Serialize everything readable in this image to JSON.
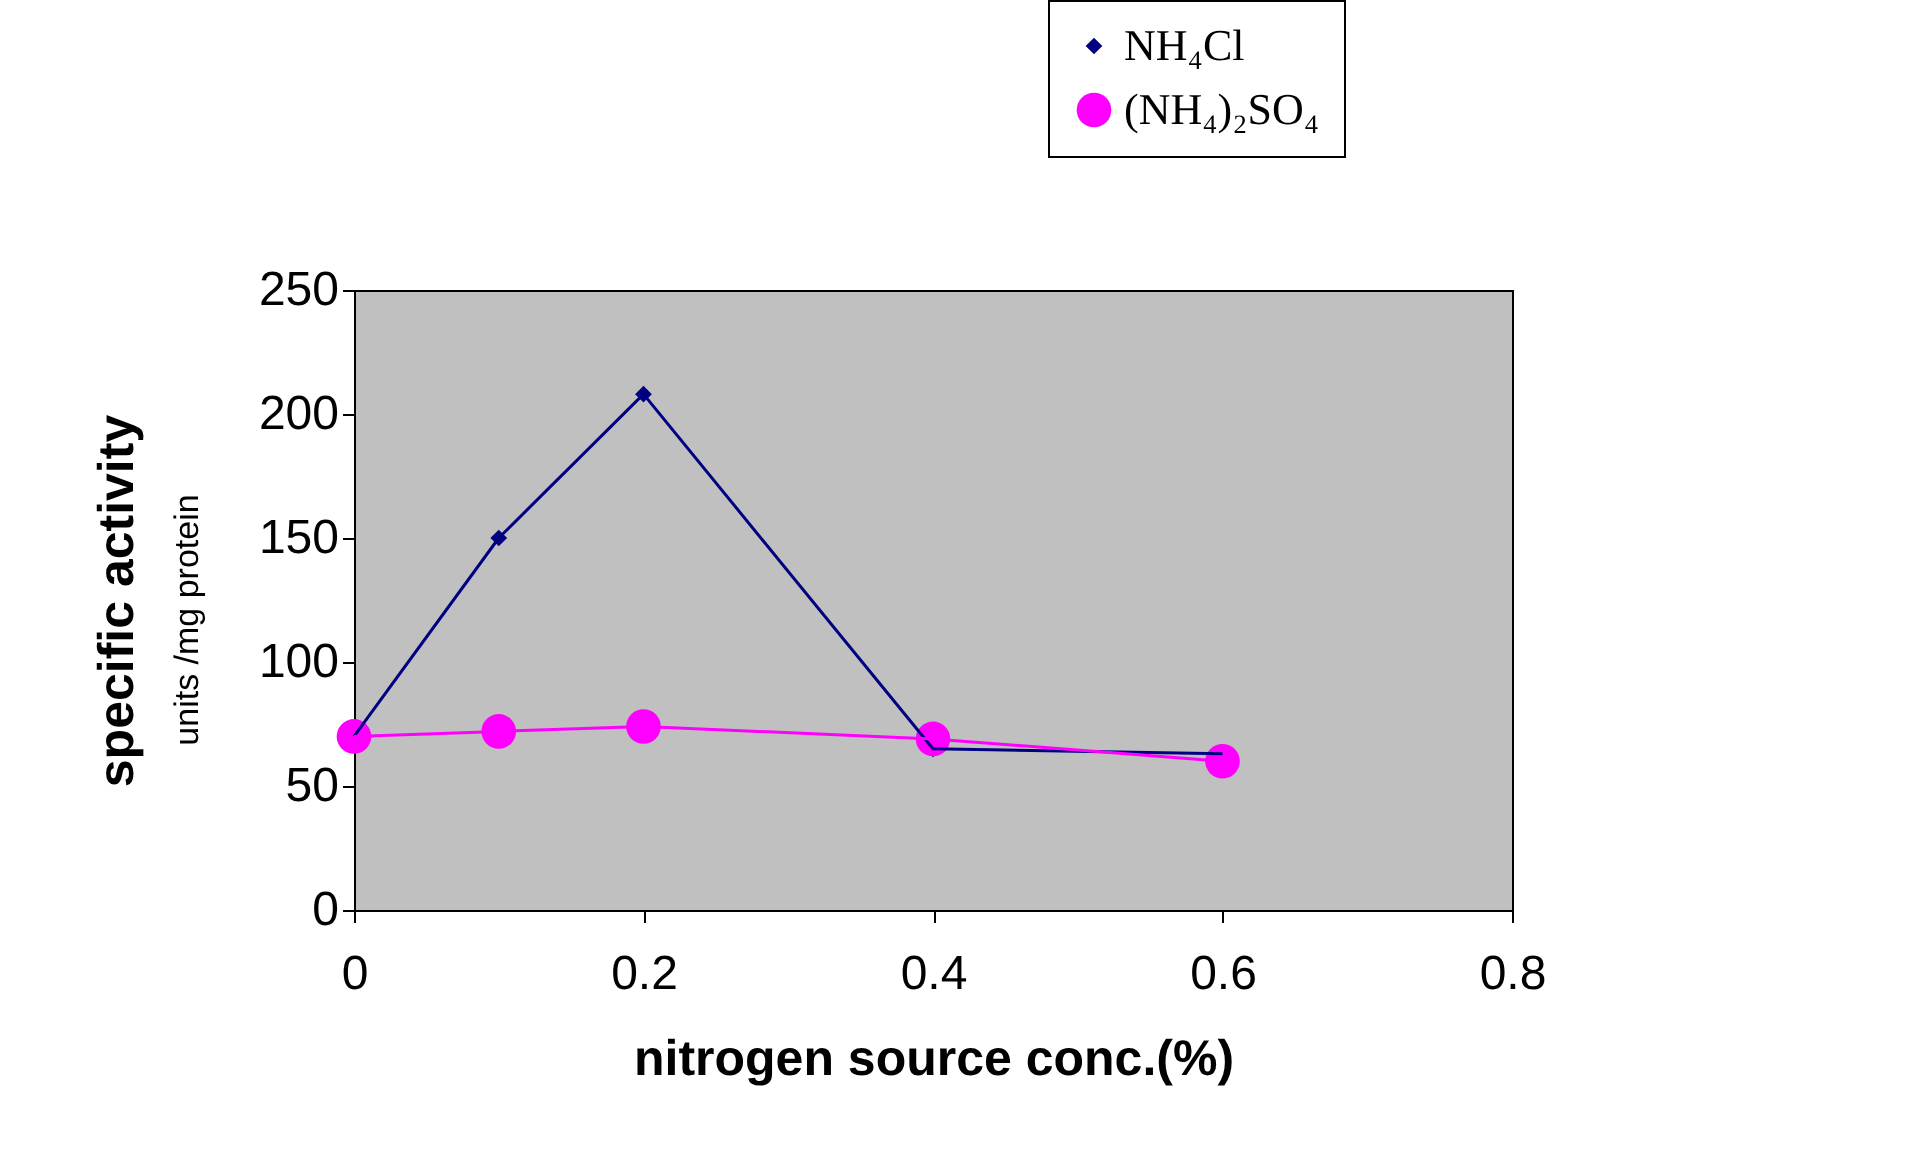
{
  "chart_data": {
    "type": "line",
    "xlabel": "nitrogen source conc.(%)",
    "ylabel": "specific activity",
    "annotations": [
      "units /mg protein"
    ],
    "x": [
      0,
      0.1,
      0.2,
      0.4,
      0.6
    ],
    "series": [
      {
        "name": "NH₄Cl",
        "color": "#000080",
        "marker": "diamond",
        "values": [
          70,
          150,
          208,
          65,
          63
        ]
      },
      {
        "name": "(NH₄)₂SO₄",
        "color": "#ff00ff",
        "marker": "circle",
        "values": [
          70,
          72,
          74,
          69,
          60
        ]
      }
    ],
    "xlim": [
      0,
      0.8
    ],
    "xticks": [
      0,
      0.2,
      0.4,
      0.6,
      0.8
    ],
    "ylim": [
      0,
      250
    ],
    "yticks": [
      0,
      50,
      100,
      150,
      200,
      250
    ],
    "grid": false,
    "legend": "top right"
  }
}
